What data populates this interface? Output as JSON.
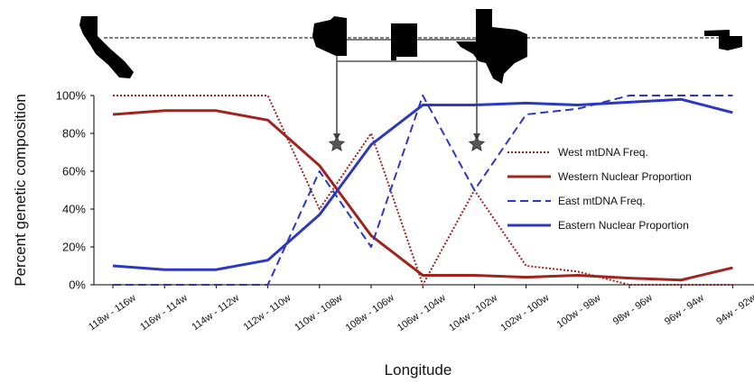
{
  "chart_data": {
    "type": "line",
    "title": "",
    "xlabel": "Longitude",
    "ylabel": "Percent genetic composition",
    "categories": [
      "118w - 116w",
      "116w - 114w",
      "114w - 112w",
      "112w - 110w",
      "110w - 108w",
      "108w - 106w",
      "106w - 104w",
      "104w - 102w",
      "102w - 100w",
      "100w - 98w",
      "98w - 96w",
      "96w - 94w",
      "94w - 92w"
    ],
    "yticks": [
      "0%",
      "20%",
      "40%",
      "60%",
      "80%",
      "100%"
    ],
    "ylim": [
      0,
      100
    ],
    "grid": false,
    "legend_position": "right",
    "series": [
      {
        "name": "West mtDNA Freq.",
        "color": "#a0231d",
        "style": "dotted",
        "values": [
          100,
          100,
          100,
          100,
          40,
          80,
          0,
          50,
          10,
          7,
          0,
          0,
          0
        ]
      },
      {
        "name": "Western Nuclear Proportion",
        "color": "#a0231d",
        "style": "solid",
        "values": [
          90,
          92,
          92,
          87,
          63,
          26,
          5,
          5,
          4,
          5,
          3.5,
          2.5,
          9
        ]
      },
      {
        "name": "East mtDNA Freq.",
        "color": "#2c38c4",
        "style": "dashed",
        "values": [
          0,
          0,
          0,
          0,
          60,
          20,
          100,
          50,
          90,
          93,
          100,
          100,
          100
        ]
      },
      {
        "name": "Eastern Nuclear Proportion",
        "color": "#2c38c4",
        "style": "solid",
        "values": [
          10,
          8,
          8,
          13,
          37,
          74,
          95,
          95,
          96,
          95,
          96.5,
          98,
          91
        ]
      }
    ]
  },
  "map_inset": {
    "state_icons": [
      "california-map-icon",
      "arizona-map-icon",
      "new-mexico-map-icon",
      "texas-map-icon",
      "oklahoma-map-icon"
    ],
    "marker_icon": "star-icon"
  }
}
